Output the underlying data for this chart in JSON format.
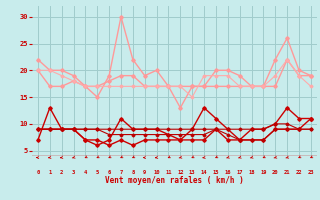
{
  "background_color": "#c8ecec",
  "grid_color": "#a0cccc",
  "xlabel": "Vent moyen/en rafales ( km/h )",
  "xlabel_color": "#cc0000",
  "tick_color": "#cc0000",
  "ylim": [
    4,
    32
  ],
  "xlim": [
    -0.5,
    23.5
  ],
  "yticks": [
    5,
    10,
    15,
    20,
    25,
    30
  ],
  "xtick_labels": [
    "0",
    "1",
    "2",
    "3",
    "4",
    "5",
    "6",
    "7",
    "8",
    "9",
    "10",
    "11",
    "12",
    "13",
    "14",
    "15",
    "16",
    "17",
    "18",
    "19",
    "20",
    "21",
    "22",
    "23"
  ],
  "series": [
    {
      "y": [
        22,
        20,
        20,
        19,
        17,
        15,
        19,
        30,
        22,
        19,
        20,
        17,
        13,
        17,
        17,
        20,
        20,
        19,
        17,
        17,
        22,
        26,
        20,
        19
      ],
      "color": "#ff9999",
      "lw": 1.0,
      "marker": "D",
      "ms": 1.8
    },
    {
      "y": [
        20,
        17,
        17,
        18,
        17,
        17,
        18,
        19,
        19,
        17,
        17,
        17,
        17,
        17,
        17,
        17,
        17,
        17,
        17,
        17,
        17,
        22,
        19,
        19
      ],
      "color": "#ff9999",
      "lw": 1.0,
      "marker": "D",
      "ms": 1.8
    },
    {
      "y": [
        20,
        20,
        19,
        18,
        17,
        17,
        17,
        17,
        17,
        17,
        17,
        17,
        17,
        15,
        19,
        19,
        19,
        17,
        17,
        17,
        19,
        22,
        19,
        17
      ],
      "color": "#ffaaaa",
      "lw": 0.8,
      "marker": "D",
      "ms": 1.5
    },
    {
      "y": [
        7,
        13,
        9,
        9,
        7,
        6,
        7,
        11,
        9,
        9,
        9,
        8,
        7,
        9,
        13,
        11,
        9,
        7,
        9,
        9,
        10,
        13,
        11,
        11
      ],
      "color": "#cc0000",
      "lw": 1.0,
      "marker": "D",
      "ms": 1.8
    },
    {
      "y": [
        9,
        9,
        9,
        9,
        7,
        7,
        6,
        7,
        6,
        7,
        7,
        7,
        7,
        7,
        7,
        9,
        7,
        7,
        7,
        7,
        9,
        9,
        9,
        11
      ],
      "color": "#cc0000",
      "lw": 1.0,
      "marker": "D",
      "ms": 1.8
    },
    {
      "y": [
        9,
        9,
        9,
        9,
        9,
        9,
        9,
        9,
        9,
        9,
        9,
        9,
        9,
        9,
        9,
        9,
        9,
        9,
        9,
        9,
        10,
        10,
        9,
        9
      ],
      "color": "#bb0000",
      "lw": 0.8,
      "marker": "D",
      "ms": 1.5
    },
    {
      "y": [
        9,
        9,
        9,
        9,
        9,
        9,
        8,
        8,
        8,
        8,
        8,
        8,
        8,
        8,
        8,
        9,
        8,
        7,
        7,
        7,
        9,
        9,
        9,
        9
      ],
      "color": "#bb0000",
      "lw": 0.8,
      "marker": "D",
      "ms": 1.5
    }
  ],
  "arrow_color": "#cc0000",
  "arrow_angles": [
    180,
    210,
    210,
    225,
    240,
    240,
    240,
    240,
    240,
    180,
    210,
    240,
    225,
    240,
    210,
    240,
    225,
    225,
    225,
    240,
    225,
    225,
    240,
    240
  ]
}
